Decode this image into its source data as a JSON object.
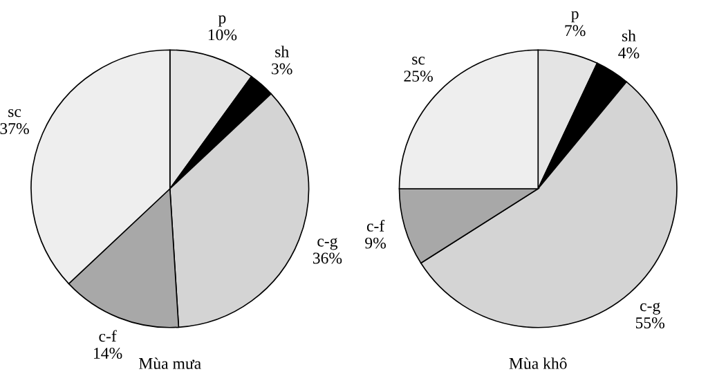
{
  "chart_data": [
    {
      "type": "pie",
      "title": "Mùa mưa",
      "categories": [
        "p",
        "sh",
        "c-g",
        "c-f",
        "sc"
      ],
      "values": [
        10,
        3,
        36,
        14,
        37
      ],
      "value_labels": [
        "10%",
        "3%",
        "36%",
        "14%",
        "37%"
      ],
      "colors": [
        "#e4e4e4",
        "#000000",
        "#d4d4d4",
        "#a8a8a8",
        "#eeeeee"
      ]
    },
    {
      "type": "pie",
      "title": "Mùa khô",
      "categories": [
        "p",
        "sh",
        "c-g",
        "c-f",
        "sc"
      ],
      "values": [
        7,
        4,
        55,
        9,
        25
      ],
      "value_labels": [
        "7%",
        "4%",
        "55%",
        "9%",
        "25%"
      ],
      "colors": [
        "#e4e4e4",
        "#000000",
        "#d4d4d4",
        "#a8a8a8",
        "#eeeeee"
      ]
    }
  ]
}
